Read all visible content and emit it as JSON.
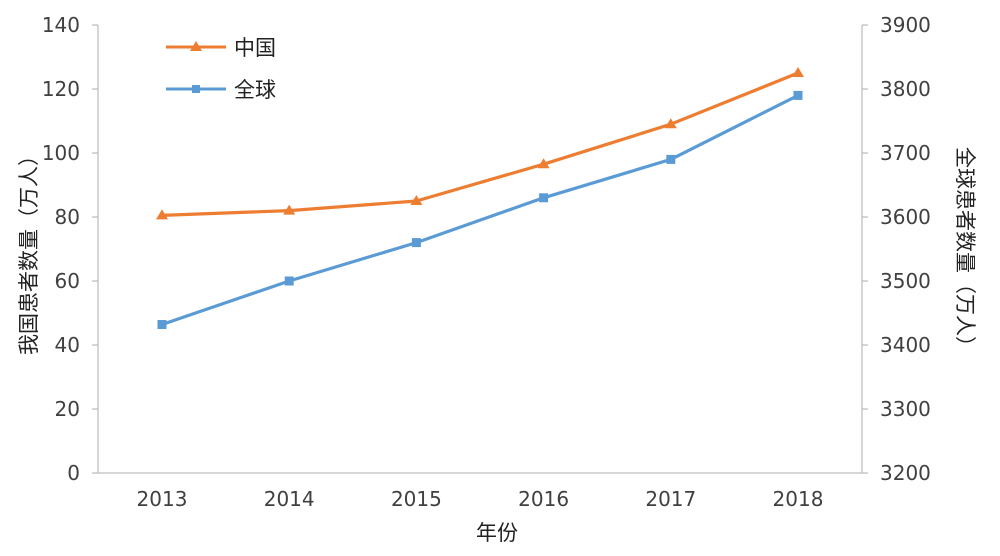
{
  "chart_data": {
    "type": "line",
    "categories": [
      "2013",
      "2014",
      "2015",
      "2016",
      "2017",
      "2018"
    ],
    "xlabel": "年份",
    "ylabel": "我国患者数量（万人）",
    "y2label": "全球患者数量（万人）",
    "ylim": [
      0,
      140
    ],
    "y2lim": [
      3200,
      3900
    ],
    "yticks": [
      "0",
      "20",
      "40",
      "60",
      "80",
      "100",
      "120",
      "140"
    ],
    "y2ticks": [
      "3200",
      "3300",
      "3400",
      "3500",
      "3600",
      "3700",
      "3800",
      "3900"
    ],
    "legend_position": "top-left",
    "grid": false,
    "series": [
      {
        "name": "中国",
        "axis": "left",
        "marker": "triangle",
        "color": "#ED7D31",
        "values": [
          80.5,
          82,
          85,
          96.5,
          109,
          125
        ]
      },
      {
        "name": "全球",
        "axis": "right",
        "marker": "square",
        "color": "#5B9BD5",
        "values": [
          3432,
          3500,
          3560,
          3630,
          3690,
          3790
        ]
      }
    ]
  }
}
